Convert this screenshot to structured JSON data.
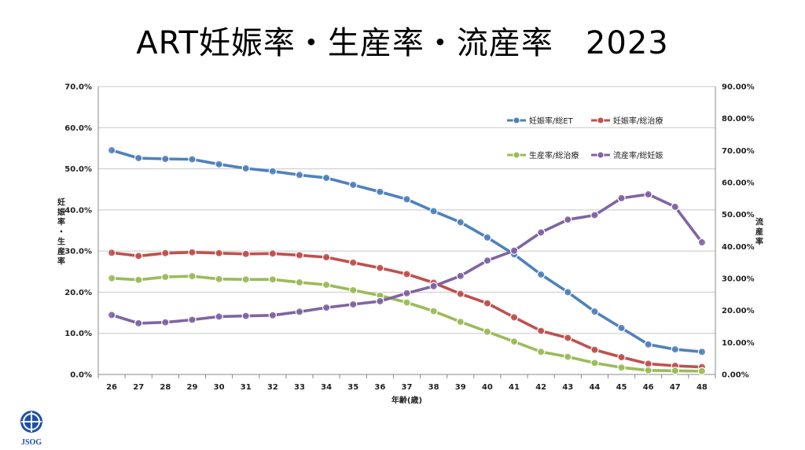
{
  "slide": {
    "title": "ART妊娠率・生産率・流産率　2023",
    "logo_text": "JSOG"
  },
  "colors": {
    "blue": "#4F81BD",
    "red": "#C0504D",
    "green": "#9BBB59",
    "purple": "#8064A2"
  },
  "chart_data": {
    "type": "line",
    "xlabel": "年齢(歳)",
    "ylabel_left": "妊娠率・生産率",
    "ylabel_right": "流産率",
    "categories": [
      "26",
      "27",
      "28",
      "29",
      "30",
      "31",
      "32",
      "33",
      "34",
      "35",
      "36",
      "37",
      "38",
      "39",
      "40",
      "41",
      "42",
      "43",
      "44",
      "45",
      "46",
      "47",
      "48"
    ],
    "ylim_left": [
      0,
      70
    ],
    "ylim_right": [
      0,
      90
    ],
    "yticks_left": [
      "0.0%",
      "10.0%",
      "20.0%",
      "30.0%",
      "40.0%",
      "50.0%",
      "60.0%",
      "70.0%"
    ],
    "yticks_right": [
      "0.00%",
      "10.00%",
      "20.00%",
      "30.00%",
      "40.00%",
      "50.00%",
      "60.00%",
      "70.00%",
      "80.00%",
      "90.00%"
    ],
    "grid": "horizontal",
    "series": [
      {
        "name": "妊娠率/総ET",
        "axis": "left",
        "color": "#4F81BD",
        "values": [
          54.5,
          52.6,
          52.4,
          52.3,
          51.1,
          50.1,
          49.4,
          48.5,
          47.8,
          46.1,
          44.4,
          42.6,
          39.7,
          37.0,
          33.3,
          29.2,
          24.3,
          20.0,
          15.3,
          11.3,
          7.3,
          6.1,
          5.5
        ]
      },
      {
        "name": "妊娠率/総治療",
        "axis": "left",
        "color": "#C0504D",
        "values": [
          29.6,
          28.8,
          29.5,
          29.7,
          29.5,
          29.3,
          29.4,
          29.0,
          28.5,
          27.2,
          25.9,
          24.4,
          22.3,
          19.6,
          17.3,
          13.9,
          10.6,
          8.9,
          6.0,
          4.2,
          2.6,
          2.1,
          1.8
        ]
      },
      {
        "name": "生産率/総治療",
        "axis": "left",
        "color": "#9BBB59",
        "values": [
          23.4,
          23.0,
          23.7,
          23.9,
          23.2,
          23.1,
          23.1,
          22.4,
          21.8,
          20.5,
          19.2,
          17.5,
          15.4,
          12.8,
          10.4,
          8.0,
          5.5,
          4.3,
          2.8,
          1.7,
          1.0,
          0.9,
          0.8
        ]
      },
      {
        "name": "流産率/総妊娠",
        "axis": "right",
        "color": "#8064A2",
        "values": [
          18.6,
          16.0,
          16.3,
          17.1,
          18.1,
          18.3,
          18.5,
          19.6,
          20.9,
          21.9,
          22.9,
          25.4,
          27.6,
          30.8,
          35.6,
          38.7,
          44.4,
          48.4,
          49.8,
          55.1,
          56.3,
          52.4,
          41.3
        ]
      }
    ]
  }
}
